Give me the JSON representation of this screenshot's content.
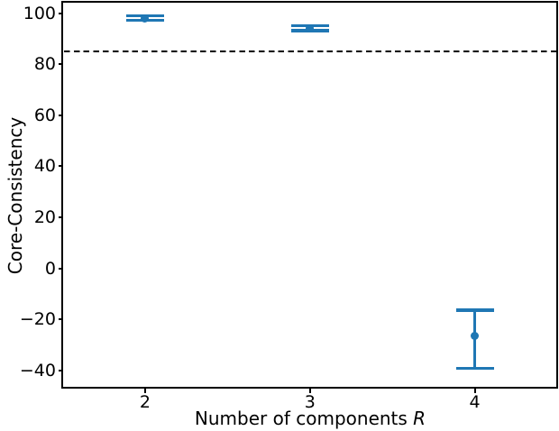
{
  "figure": {
    "background": "#ffffff",
    "axis_color": "#000000"
  },
  "chart_data": {
    "type": "scatter",
    "subtype": "errorbar",
    "title": "",
    "xlabel": "Number of components R",
    "xlabel_prefix": "Number of components ",
    "xlabel_var": "R",
    "ylabel": "Core-Consistency",
    "xlim": [
      1.5,
      4.5
    ],
    "ylim": [
      -46.6,
      104.3
    ],
    "xticks": [
      2,
      3,
      4
    ],
    "xtick_labels": [
      "2",
      "3",
      "4"
    ],
    "yticks": [
      100,
      80,
      60,
      40,
      20,
      0,
      -20,
      -40
    ],
    "ytick_labels": [
      "100",
      "80",
      "60",
      "40",
      "20",
      "0",
      "−20",
      "−40"
    ],
    "grid": false,
    "legend": null,
    "reference_line": {
      "y": 85,
      "style": "dashed",
      "color": "#000000"
    },
    "series": [
      {
        "name": "core-consistency-vs-R",
        "color": "#1f77b4",
        "marker": "circle",
        "points": [
          {
            "x": 2,
            "y": 98.0,
            "err_low": 97.3,
            "err_high": 99.0
          },
          {
            "x": 3,
            "y": 94.1,
            "err_low": 93.2,
            "err_high": 95.1
          },
          {
            "x": 4,
            "y": -26.6,
            "err_low": -39.2,
            "err_high": -16.4
          }
        ]
      }
    ]
  }
}
